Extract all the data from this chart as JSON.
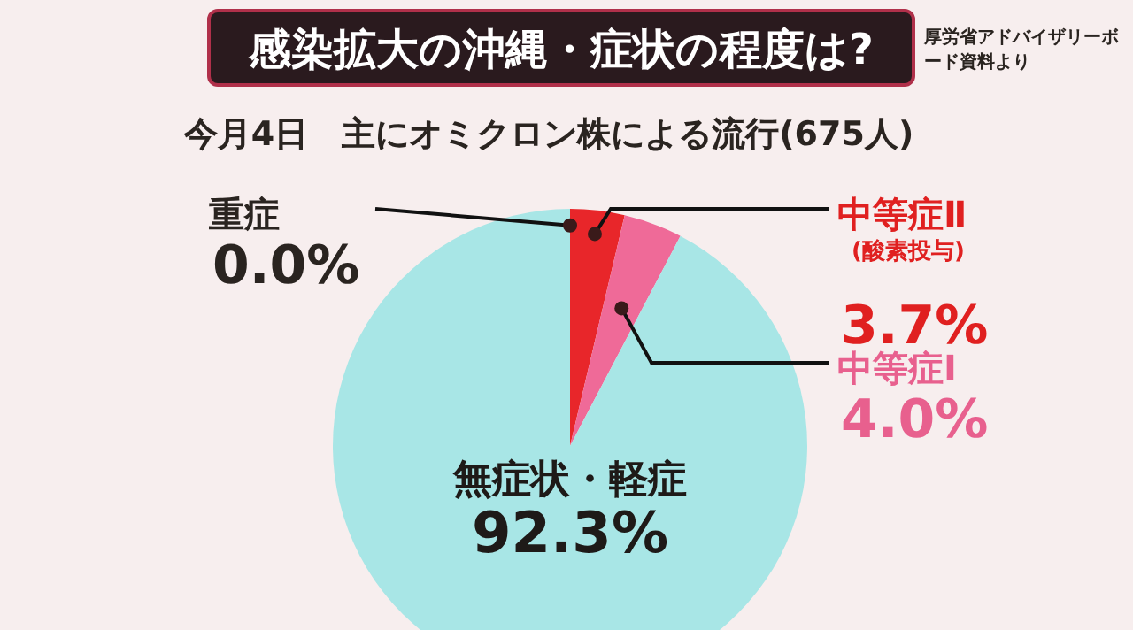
{
  "chart_data": {
    "type": "pie",
    "title": "感染拡大の沖縄・症状の程度は?",
    "subtitle": "今月4日　主にオミクロン株による流行(675人)",
    "annotations": [
      "厚労省アドバイザリーボード資料より"
    ],
    "categories": [
      "重症",
      "中等症Ⅱ\n(酸素投与)",
      "中等症Ⅰ",
      "無症状・軽症"
    ],
    "values": [
      0.0,
      3.7,
      4.0,
      92.3
    ],
    "value_labels": [
      "0.0%",
      "3.7%",
      "4.0%",
      "92.3%"
    ],
    "colors": [
      "#c0392b",
      "#e8262a",
      "#ef6a98",
      "#a8e6e6"
    ]
  }
}
